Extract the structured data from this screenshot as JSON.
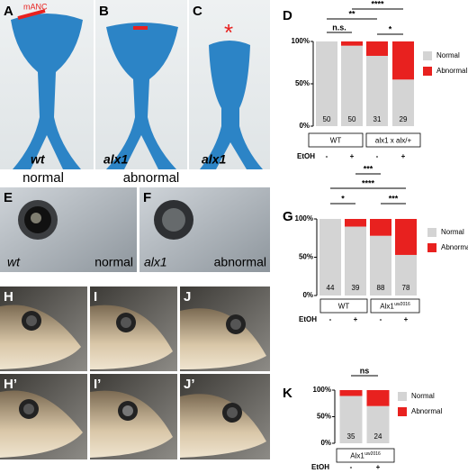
{
  "photos": [
    {
      "letter": "A",
      "genotype": "wt",
      "annotation": "mANC"
    },
    {
      "letter": "B",
      "genotype": "alx1"
    },
    {
      "letter": "C",
      "genotype": "alx1",
      "annotation": "*"
    },
    {
      "letter": "E",
      "genotype": "wt",
      "phenotype": "normal"
    },
    {
      "letter": "F",
      "genotype": "alx1",
      "phenotype": "abnormal"
    },
    {
      "letter": "H"
    },
    {
      "letter": "I"
    },
    {
      "letter": "J"
    },
    {
      "letter": "H’"
    },
    {
      "letter": "I’"
    },
    {
      "letter": "J’"
    }
  ],
  "phenotype_labels": [
    "normal",
    "abnormal"
  ],
  "chart_data": [
    {
      "type": "bar",
      "stacked": true,
      "panel": "D",
      "categories": [
        "-",
        "+",
        "-",
        "+"
      ],
      "row_label": "EtOH",
      "groups": [
        {
          "label": "WT"
        },
        {
          "label": "alx1 x alx/+"
        }
      ],
      "counts": [
        50,
        50,
        31,
        29
      ],
      "series": [
        {
          "name": "Normal",
          "color": "#d4d4d4",
          "values": [
            100,
            95,
            83,
            55
          ]
        },
        {
          "name": "Abnormal",
          "color": "#e8211f",
          "values": [
            0,
            5,
            17,
            45
          ]
        }
      ],
      "ylim": [
        0,
        100
      ],
      "yticks": [
        {
          "value": 0,
          "label": "0%"
        },
        {
          "value": 50,
          "label": "50%"
        },
        {
          "value": 100,
          "label": "100%"
        }
      ],
      "significance": [
        "n.s.",
        "**",
        "****",
        "*"
      ],
      "legend": "right"
    },
    {
      "type": "bar",
      "stacked": true,
      "panel": "G",
      "categories": [
        "-",
        "+",
        "-",
        "+"
      ],
      "row_label": "EtOH",
      "groups": [
        {
          "label": "WT"
        },
        {
          "label": "Alx1",
          "superscript": "uw2016"
        }
      ],
      "counts": [
        44,
        39,
        88,
        78
      ],
      "series": [
        {
          "name": "Normal",
          "color": "#d4d4d4",
          "values": [
            100,
            90,
            78,
            53
          ]
        },
        {
          "name": "Abnormal",
          "color": "#e8211f",
          "values": [
            0,
            10,
            22,
            47
          ]
        }
      ],
      "ylim": [
        0,
        100
      ],
      "yticks": [
        {
          "value": 0,
          "label": "0%"
        },
        {
          "value": 50,
          "label": "50%"
        },
        {
          "value": 100,
          "label": "100%"
        }
      ],
      "significance": [
        "*",
        "***",
        "***",
        "****"
      ],
      "legend": "right"
    },
    {
      "type": "bar",
      "stacked": true,
      "panel": "K",
      "categories": [
        "-",
        "+"
      ],
      "row_label": "EtOH",
      "groups": [
        {
          "label": "Alx1",
          "superscript": "uw2016"
        }
      ],
      "counts": [
        35,
        24
      ],
      "series": [
        {
          "name": "Normal",
          "color": "#d4d4d4",
          "values": [
            89,
            70
          ]
        },
        {
          "name": "Abnormal",
          "color": "#e8211f",
          "values": [
            11,
            30
          ]
        }
      ],
      "ylim": [
        0,
        100
      ],
      "yticks": [
        {
          "value": 0,
          "label": "0%"
        },
        {
          "value": 50,
          "label": "50%"
        },
        {
          "value": 100,
          "label": "100%"
        }
      ],
      "significance": [
        "ns"
      ],
      "legend": "right"
    }
  ]
}
